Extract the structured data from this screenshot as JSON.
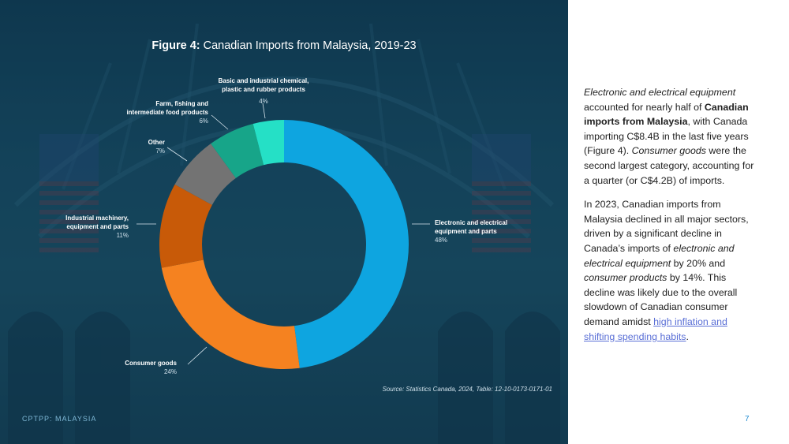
{
  "chart_title_prefix": "Figure 4:",
  "chart_title_rest": " Canadian Imports from Malaysia, 2019-23",
  "chart_data": {
    "type": "pie",
    "title": "Figure 4: Canadian Imports from Malaysia, 2019-23",
    "slices": [
      {
        "label": "Electronic and electrical equipment and parts",
        "pct_label": "48%",
        "value": 48,
        "color": "#0ea5e0"
      },
      {
        "label": "Consumer goods",
        "pct_label": "24%",
        "value": 24,
        "color": "#f58220"
      },
      {
        "label": "Industrial machinery, equipment and parts",
        "pct_label": "11%",
        "value": 11,
        "color": "#c85a08"
      },
      {
        "label": "Other",
        "pct_label": "7%",
        "value": 7,
        "color": "#737373"
      },
      {
        "label": "Farm, fishing and intermediate food products",
        "pct_label": "6%",
        "value": 6,
        "color": "#17a589"
      },
      {
        "label": "Basic and industrial chemical, plastic and rubber products",
        "pct_label": "4%",
        "value": 4,
        "color": "#25e0c6"
      }
    ]
  },
  "labels": {
    "electronic_1": "Electronic and electrical",
    "electronic_2": "equipment and parts",
    "consumer": "Consumer goods",
    "industrial_1": "Industrial machinery,",
    "industrial_2": "equipment and parts",
    "other": "Other",
    "farm_1": "Farm, fishing and",
    "farm_2": "intermediate food products",
    "chem_1": "Basic and industrial chemical,",
    "chem_2": "plastic and rubber products"
  },
  "source": "Source: Statistics Canada, 2024, Table: 12-10-0173-0171-01",
  "footer_left": "CPTPP: MALAYSIA",
  "page_number": "7",
  "para1": {
    "i1": "Electronic and electrical equipment",
    "t1": " accounted for nearly half of ",
    "b1": "Canadian imports from Malaysia",
    "t2": ", with Canada importing C$8.4B in the last five years (Figure 4). ",
    "i2": "Consumer goods",
    "t3": " were the second largest category, accounting for a quarter (or C$4.2B) of imports."
  },
  "para2": {
    "t1": "In 2023, Canadian imports from Malaysia declined in all major sectors, driven by a significant decline in Canada’s imports of ",
    "i1": "electronic and electrical equipment",
    "t2": " by 20% and ",
    "i2": "consumer products",
    "t3": " by 14%. This decline was likely due to the overall slowdown of Canadian consumer demand amidst ",
    "link": "high inflation and shifting spending habits",
    "t4": "."
  }
}
